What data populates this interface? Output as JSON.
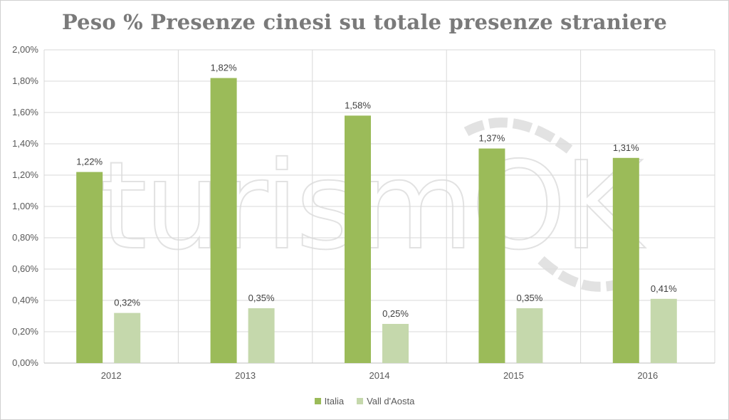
{
  "chart_data": {
    "type": "bar",
    "title": "Peso % Presenze cinesi su totale presenze straniere",
    "xlabel": "",
    "ylabel": "",
    "categories": [
      "2012",
      "2013",
      "2014",
      "2015",
      "2016"
    ],
    "series": [
      {
        "name": "Italia",
        "color": "#9bbb59",
        "values": [
          1.22,
          1.82,
          1.58,
          1.37,
          1.31
        ],
        "labels": [
          "1,22%",
          "1,82%",
          "1,58%",
          "1,37%",
          "1,31%"
        ]
      },
      {
        "name": "Vall d'Aosta",
        "color": "#c5d8ac",
        "values": [
          0.32,
          0.35,
          0.25,
          0.35,
          0.41
        ],
        "labels": [
          "0,32%",
          "0,35%",
          "0,25%",
          "0,35%",
          "0,41%"
        ]
      }
    ],
    "ylim": [
      0,
      2.0
    ],
    "yticks": [
      0,
      0.2,
      0.4,
      0.6,
      0.8,
      1.0,
      1.2,
      1.4,
      1.6,
      1.8,
      2.0
    ],
    "ytick_labels": [
      "0,00%",
      "0,20%",
      "0,40%",
      "0,60%",
      "0,80%",
      "1,00%",
      "1,20%",
      "1,40%",
      "1,60%",
      "1,80%",
      "2,00%"
    ],
    "grid": true,
    "legend_position": "bottom"
  },
  "watermark": {
    "text": "turismOK"
  }
}
